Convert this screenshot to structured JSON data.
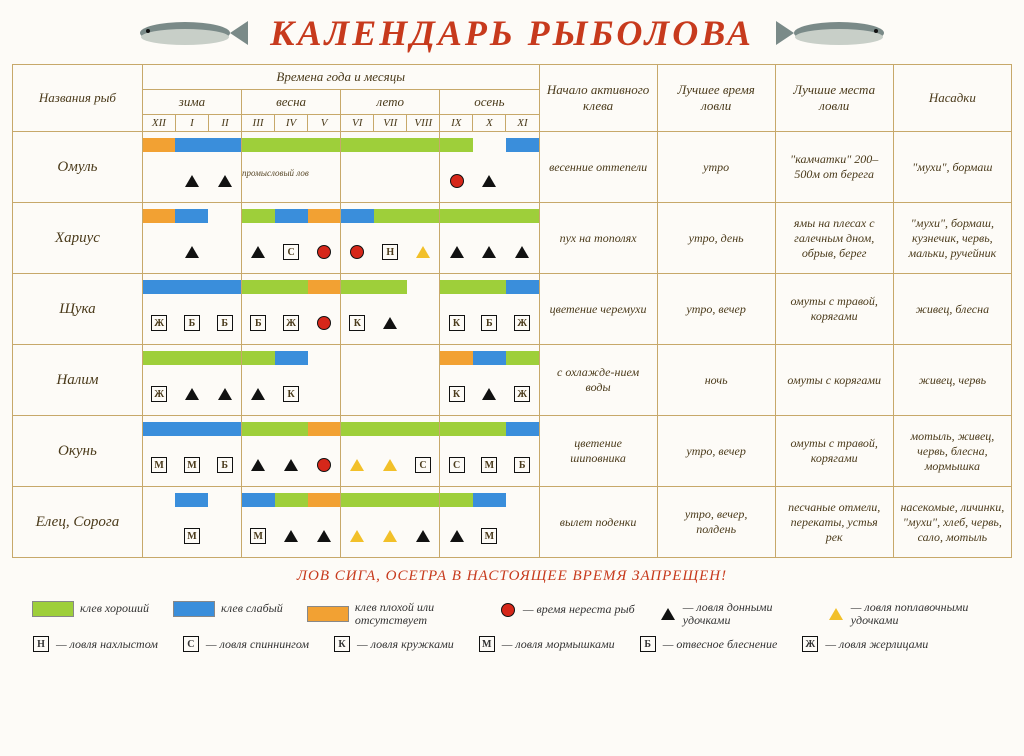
{
  "title": "КАЛЕНДАРЬ РЫБОЛОВА",
  "colors": {
    "good": "#9ecf3a",
    "weak": "#3a8edb",
    "bad": "#f2a133",
    "border": "#c7a86a",
    "title": "#c73a1d"
  },
  "headers": {
    "fish_names": "Названия рыб",
    "seasons_months": "Времена года и месяцы",
    "start_active": "Начало активного клева",
    "best_time": "Лучшее время ловли",
    "best_places": "Лучшие места ловли",
    "bait": "Насадки",
    "seasons": {
      "winter": "зима",
      "spring": "весна",
      "summer": "лето",
      "autumn": "осень"
    },
    "months": [
      "XII",
      "I",
      "II",
      "III",
      "IV",
      "V",
      "VI",
      "VII",
      "VIII",
      "IX",
      "X",
      "XI"
    ]
  },
  "fish": [
    {
      "name": "Омуль",
      "bars": [
        "bad",
        "weak",
        "weak",
        "good",
        "good",
        "good",
        "good",
        "good",
        "good",
        "good",
        "",
        "weak"
      ],
      "symbols": [
        "",
        "tri",
        "tri",
        "",
        "",
        "",
        "",
        "",
        "",
        "circ",
        "tri",
        ""
      ],
      "note_span": [
        3,
        6
      ],
      "note": "промысловый лов",
      "start": "весенние оттепели",
      "time": "утро",
      "places": "\"камчатки\" 200–500м от берега",
      "bait": "\"мухи\", бормаш"
    },
    {
      "name": "Хариус",
      "bars": [
        "bad",
        "weak",
        "",
        "good",
        "weak",
        "bad",
        "weak",
        "good",
        "good",
        "good",
        "good",
        "good"
      ],
      "symbols": [
        "",
        "tri",
        "",
        "tri",
        "С",
        "circ",
        "circ",
        "Н",
        "triy",
        "tri",
        "tri",
        "tri"
      ],
      "start": "пух на тополях",
      "time": "утро, день",
      "places": "ямы на плесах с галечным дном, обрыв, берег",
      "bait": "\"мухи\", бормаш, кузнечик, червь, мальки, ручейник"
    },
    {
      "name": "Щука",
      "bars": [
        "weak",
        "weak",
        "weak",
        "good",
        "good",
        "bad",
        "good",
        "good",
        "",
        "good",
        "good",
        "weak"
      ],
      "symbols": [
        "Ж",
        "Б",
        "Б",
        "Б",
        "Ж",
        "circ",
        "К",
        "tri",
        "",
        "К",
        "Б",
        "Ж"
      ],
      "start": "цветение черемухи",
      "time": "утро, вечер",
      "places": "омуты с травой, корягами",
      "bait": "живец, блесна"
    },
    {
      "name": "Налим",
      "bars": [
        "good",
        "good",
        "good",
        "good",
        "weak",
        "",
        "",
        "",
        "",
        "bad",
        "weak",
        "good"
      ],
      "symbols": [
        "Ж",
        "tri",
        "tri",
        "tri",
        "К",
        "",
        "",
        "",
        "",
        "К",
        "tri",
        "Ж"
      ],
      "start": "с охлажде-нием воды",
      "time": "ночь",
      "places": "омуты с корягами",
      "bait": "живец, червь"
    },
    {
      "name": "Окунь",
      "bars": [
        "weak",
        "weak",
        "weak",
        "good",
        "good",
        "bad",
        "good",
        "good",
        "good",
        "good",
        "good",
        "weak"
      ],
      "symbols": [
        "М",
        "М",
        "Б",
        "tri",
        "tri",
        "circ",
        "triy",
        "triy",
        "С",
        "С",
        "М",
        "Б"
      ],
      "start": "цветение шиповника",
      "time": "утро, вечер",
      "places": "омуты с травой, корягами",
      "bait": "мотыль, живец, червь, блесна, мормышка"
    },
    {
      "name": "Елец, Сорога",
      "bars": [
        "",
        "weak",
        "",
        "weak",
        "good",
        "bad",
        "good",
        "good",
        "good",
        "good",
        "weak",
        ""
      ],
      "symbols": [
        "",
        "М",
        "",
        "М",
        "tri",
        "tri",
        "triy",
        "triy",
        "tri",
        "tri",
        "М",
        ""
      ],
      "start": "вылет поденки",
      "time": "утро, вечер, полдень",
      "places": "песчаные отмели, перекаты, устья рек",
      "bait": "насекомые, личинки, \"мухи\", хлеб, червь, сало, мотыль"
    }
  ],
  "footer_warn": "ЛОВ СИГА, ОСЕТРА В НАСТОЯЩЕЕ ВРЕМЯ ЗАПРЕЩЕН!",
  "legend": {
    "swatches": [
      {
        "color": "#9ecf3a",
        "label": "клев хороший"
      },
      {
        "color": "#3a8edb",
        "label": "клев слабый"
      },
      {
        "color": "#f2a133",
        "label": "клев плохой или отсутствует"
      }
    ],
    "symbols": [
      {
        "kind": "circ",
        "label": "— время нереста рыб"
      },
      {
        "kind": "tri",
        "label": "— ловля донными удочками"
      },
      {
        "kind": "triy",
        "label": "— ловля поплавочными удочками"
      },
      {
        "kind": "Н",
        "label": "— ловля нахлыстом"
      },
      {
        "kind": "С",
        "label": "— ловля спиннингом"
      },
      {
        "kind": "К",
        "label": "— ловля кружками"
      },
      {
        "kind": "М",
        "label": "— ловля мормышками"
      },
      {
        "kind": "Б",
        "label": "— отвесное блеснение"
      },
      {
        "kind": "Ж",
        "label": "— ловля жерлицами"
      }
    ]
  }
}
